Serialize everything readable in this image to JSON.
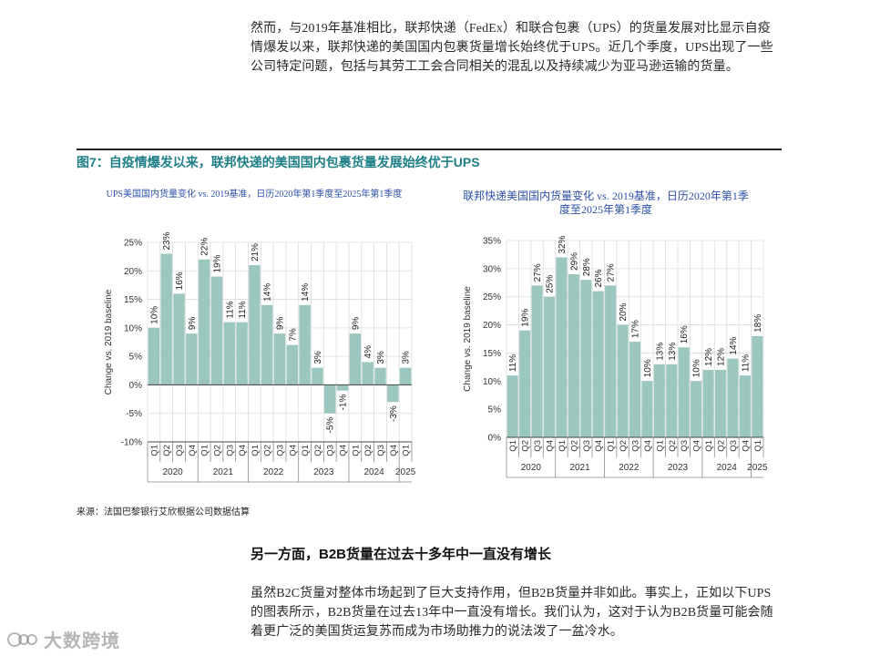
{
  "intro_paragraph": "然而，与2019年基准相比，联邦快递（FedEx）和联合包裹（UPS）的货量发展对比显示自疫情爆发以来，联邦快递的美国国内包裹货量增长始终优于UPS。近几个季度，UPS出现了一些公司特定问题，包括与其劳工工会合同相关的混乱以及持续减少为亚马逊运输的货量。",
  "figure_title": "图7：自疫情爆发以来，联邦快递的美国国内包裹货量发展始终优于UPS",
  "source": "来源：法国巴黎银行艾欣根据公司数据估算",
  "section_heading": "另一方面，B2B货量在过去十多年中一直没有增长",
  "body_paragraph": "虽然B2C货量对整体市场起到了巨大支持作用，但B2B货量并非如此。事实上，正如以下UPS的图表所示，B2B货量在过去13年中一直没有增长。我们认为，这对于认为B2B货量可能会随着更广泛的美国货运复苏而成为市场助推力的说法泼了一盆冷水。",
  "watermark": "大数跨境",
  "colors": {
    "bar": "#9cc7bf",
    "title_teal": "#1e7f86",
    "chart_title_blue": "#2c4fa8"
  },
  "chart_data": [
    {
      "type": "bar",
      "title": "UPS美国国内货量变化 vs. 2019基准，日历2020年第1季度至2025年第1季度",
      "ylabel": "Change vs. 2019 baseline",
      "ylim": [
        -10,
        25
      ],
      "yticks": [
        -10,
        -5,
        0,
        5,
        10,
        15,
        20,
        25
      ],
      "ytick_labels": [
        "-10%",
        "-5%",
        "0%",
        "5%",
        "10%",
        "15%",
        "20%",
        "25%"
      ],
      "categories": [
        "Q1",
        "Q2",
        "Q3",
        "Q4",
        "Q1",
        "Q2",
        "Q3",
        "Q4",
        "Q1",
        "Q2",
        "Q3",
        "Q4",
        "Q1",
        "Q2",
        "Q3",
        "Q4",
        "Q1",
        "Q2",
        "Q3",
        "Q4",
        "Q1"
      ],
      "values": [
        10,
        23,
        16,
        9,
        22,
        19,
        11,
        11,
        21,
        14,
        9,
        7,
        14,
        3,
        -5,
        -1,
        9,
        4,
        3,
        -3,
        3
      ],
      "data_labels": [
        "10%",
        "23%",
        "16%",
        "9%",
        "22%",
        "19%",
        "11%",
        "11%",
        "21%",
        "14%",
        "9%",
        "7%",
        "14%",
        "3%",
        "-5%",
        "-1%",
        "9%",
        "4%",
        "3%",
        "-3%",
        "3%"
      ],
      "years": [
        "2020",
        "2021",
        "2022",
        "2023",
        "2024",
        "2025"
      ]
    },
    {
      "type": "bar",
      "title": "联邦快递美国国内货量变化 vs. 2019基准，日历2020年第1季度至2025年第1季度",
      "ylabel": "Change vs. 2019 baseline",
      "ylim": [
        0,
        35
      ],
      "yticks": [
        0,
        5,
        10,
        15,
        20,
        25,
        30,
        35
      ],
      "ytick_labels": [
        "0%",
        "5%",
        "10%",
        "15%",
        "20%",
        "25%",
        "30%",
        "35%"
      ],
      "categories": [
        "Q1",
        "Q2",
        "Q3",
        "Q4",
        "Q1",
        "Q2",
        "Q3",
        "Q4",
        "Q1",
        "Q2",
        "Q3",
        "Q4",
        "Q1",
        "Q2",
        "Q3",
        "Q4",
        "Q1",
        "Q2",
        "Q3",
        "Q4",
        "Q1"
      ],
      "values": [
        11,
        19,
        27,
        25,
        32,
        29,
        28,
        26,
        27,
        20,
        17,
        10,
        13,
        13,
        16,
        10,
        12,
        12,
        14,
        11,
        18
      ],
      "data_labels": [
        "11%",
        "19%",
        "27%",
        "25%",
        "32%",
        "29%",
        "28%",
        "26%",
        "27%",
        "20%",
        "17%",
        "10%",
        "13%",
        "13%",
        "16%",
        "10%",
        "12%",
        "12%",
        "14%",
        "11%",
        "18%"
      ],
      "years": [
        "2020",
        "2021",
        "2022",
        "2023",
        "2024",
        "2025"
      ]
    }
  ]
}
